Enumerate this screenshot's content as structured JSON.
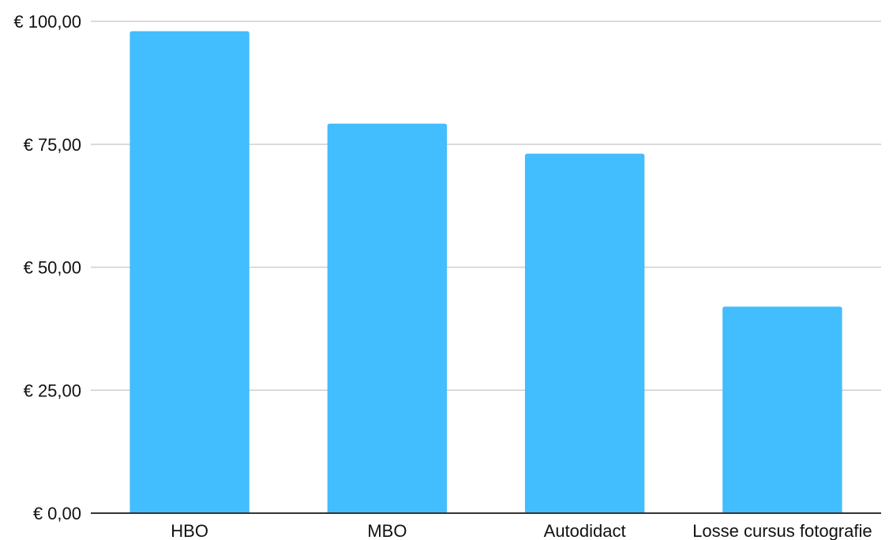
{
  "chart_data": {
    "type": "bar",
    "title": "",
    "xlabel": "",
    "ylabel": "",
    "categories": [
      "HBO",
      "MBO",
      "Autodidact",
      "Losse cursus fotografie"
    ],
    "values": [
      98,
      79.2,
      73.1,
      42
    ],
    "ylim": [
      0,
      100
    ],
    "yticks": [
      0,
      25,
      50,
      75,
      100
    ],
    "ytick_labels": [
      "€ 0,00",
      "€ 25,00",
      "€ 50,00",
      "€ 75,00",
      "€ 100,00"
    ],
    "grid": true,
    "legend": "none",
    "bar_color": "#42bdfd"
  }
}
